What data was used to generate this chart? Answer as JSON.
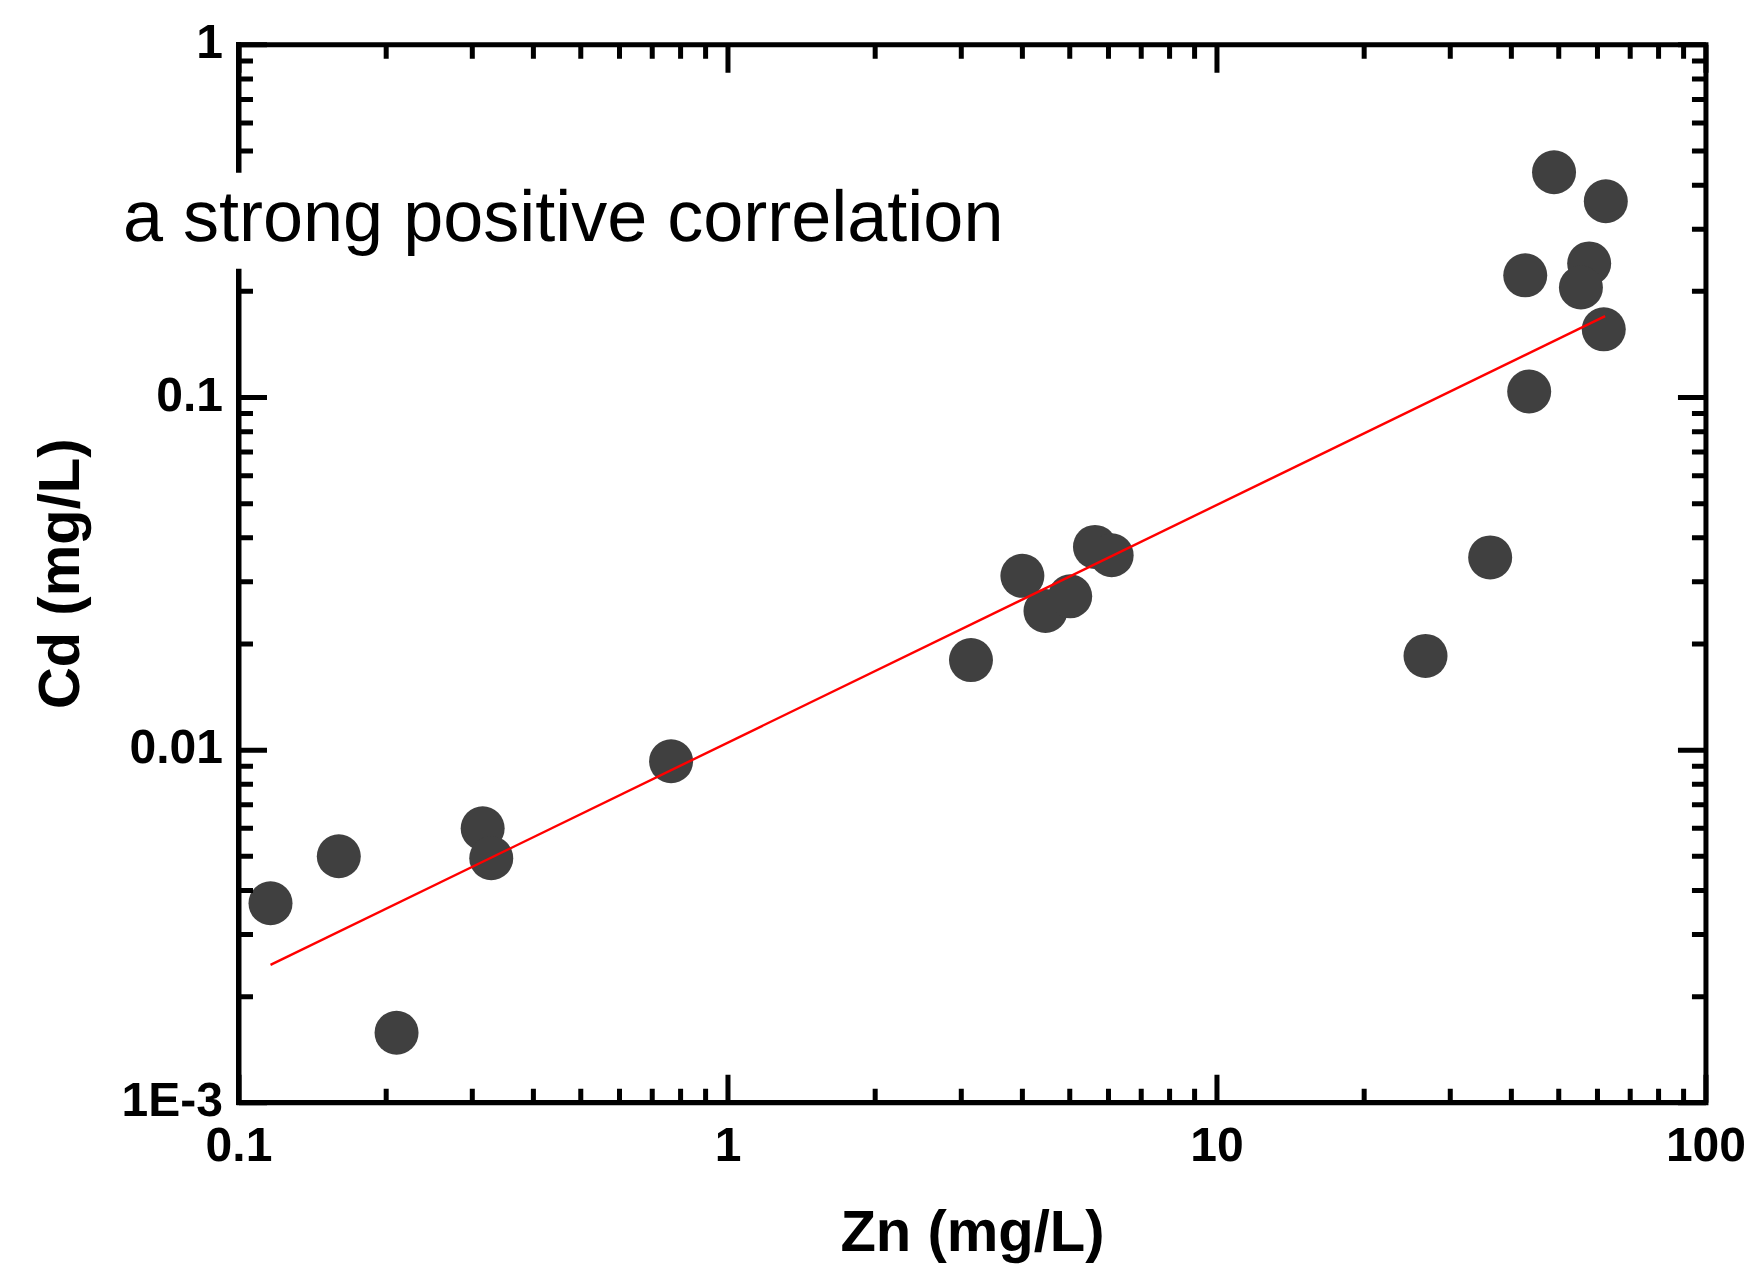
{
  "chart_data": {
    "type": "scatter",
    "xlabel": "Zn (mg/L)",
    "ylabel": "Cd (mg/L)",
    "annotations": [
      "a strong positive correlation"
    ],
    "log": "xy",
    "grid": false,
    "legend": false,
    "marker": "circle",
    "xlim": [
      0.1,
      100
    ],
    "ylim": [
      0.001,
      1
    ],
    "xticks": [
      0.1,
      1,
      10,
      100
    ],
    "yticks": [
      {
        "value": 0.001,
        "label": "1E-3"
      },
      0.01,
      0.1,
      1
    ],
    "series": [
      {
        "color": "#404040",
        "x": [
          0.116,
          0.16,
          0.21,
          0.315,
          0.328,
          0.765,
          3.14,
          4.0,
          4.46,
          5.01,
          5.63,
          6.09,
          48.9,
          62.4,
          42.7,
          57.7,
          55.5,
          61.8,
          43.5,
          36.2,
          26.7
        ],
        "values": [
          0.00368,
          0.005,
          0.00158,
          0.006,
          0.00494,
          0.0093,
          0.018,
          0.0312,
          0.0248,
          0.0273,
          0.0377,
          0.0357,
          0.435,
          0.36,
          0.222,
          0.24,
          0.205,
          0.156,
          0.104,
          0.0352,
          0.0185
        ]
      },
      {
        "type": "line",
        "color": "#ff0000",
        "marker": "none",
        "x": [
          0.116,
          62.2
        ],
        "values": [
          0.00246,
          0.17
        ]
      }
    ]
  }
}
